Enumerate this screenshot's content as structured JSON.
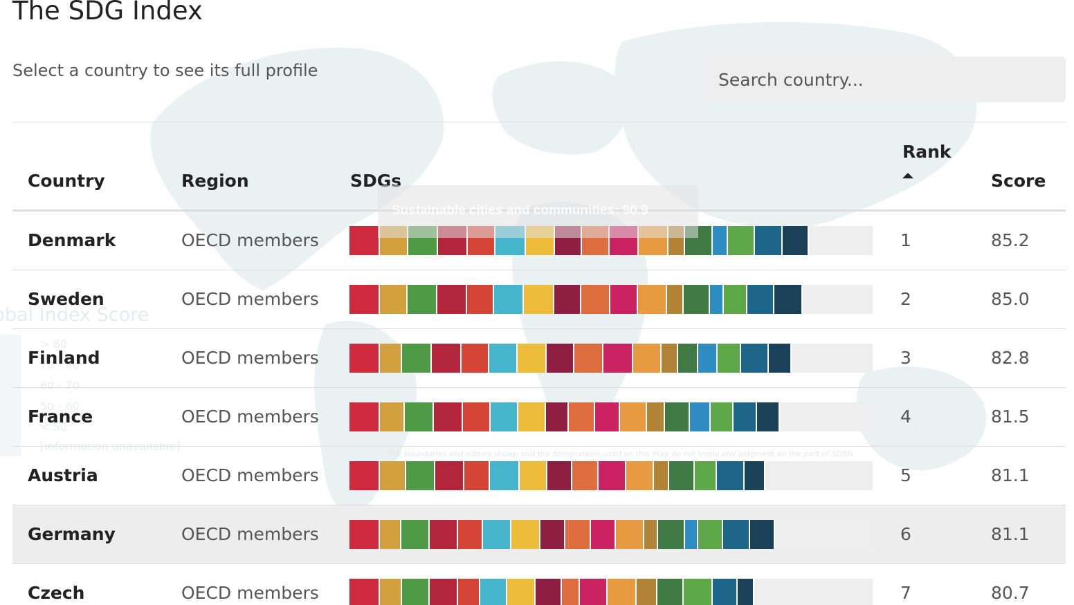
{
  "header": {
    "title": "The SDG Index",
    "subtitle": "Select a country to see its full profile"
  },
  "search": {
    "placeholder": "Search country..."
  },
  "table": {
    "columns": {
      "country": "Country",
      "region": "Region",
      "sdgs": "SDGs",
      "rank": "Rank",
      "score": "Score"
    },
    "sort": {
      "column": "rank",
      "direction": "ascending"
    },
    "hovered_row": "Germany",
    "rows": [
      {
        "country": "Denmark",
        "region": "OECD members",
        "rank": "1",
        "score": "85.2",
        "sdg_values": [
          99.5,
          93.0,
          97.0,
          96.0,
          91.0,
          98.0,
          95.0,
          87.0,
          89.0,
          95.0,
          97.0,
          53.0,
          90.0,
          49.0,
          87.0,
          91.0,
          86.0
        ]
      },
      {
        "country": "Sweden",
        "region": "OECD members",
        "rank": "2",
        "score": "85.0",
        "sdg_values": [
          99.4,
          89.0,
          96.0,
          96.0,
          88.0,
          96.0,
          98.0,
          87.0,
          94.0,
          91.0,
          95.0,
          55.0,
          85.0,
          45.0,
          76.0,
          87.0,
          92.0
        ]
      },
      {
        "country": "Finland",
        "region": "OECD members",
        "rank": "3",
        "score": "82.8",
        "sdg_values": [
          99.5,
          72.0,
          96.0,
          96.0,
          91.0,
          93.0,
          95.0,
          89.0,
          94.0,
          97.0,
          92.0,
          53.0,
          66.0,
          62.0,
          77.0,
          90.0,
          75.0
        ]
      },
      {
        "country": "France",
        "region": "OECD members",
        "rank": "4",
        "score": "81.5",
        "sdg_values": [
          99.5,
          80.0,
          94.0,
          95.0,
          91.0,
          90.0,
          91.0,
          74.0,
          86.0,
          81.0,
          88.0,
          58.0,
          81.0,
          67.0,
          74.0,
          77.0,
          74.0
        ]
      },
      {
        "country": "Austria",
        "region": "OECD members",
        "rank": "5",
        "score": "81.1",
        "sdg_values": [
          99.6,
          85.0,
          94.0,
          94.0,
          84.0,
          96.0,
          91.0,
          82.0,
          86.0,
          91.0,
          90.0,
          50.0,
          84.0,
          0.0,
          72.0,
          91.0,
          67.0
        ]
      },
      {
        "country": "Germany",
        "region": "OECD members",
        "rank": "6",
        "score": "81.1",
        "sdg_values": [
          99.5,
          69.0,
          92.0,
          93.0,
          80.0,
          93.0,
          94.0,
          81.0,
          84.0,
          82.0,
          92.0,
          44.0,
          87.0,
          43.0,
          82.0,
          87.0,
          81.0
        ]
      },
      {
        "country": "Czech",
        "region": "OECD members",
        "rank": "7",
        "score": "80.7",
        "sdg_values": [
          99.5,
          71.0,
          91.0,
          92.0,
          73.0,
          87.0,
          93.0,
          86.0,
          59.0,
          89.0,
          95.0,
          67.0,
          85.0,
          0.0,
          95.0,
          81.0,
          54.0
        ]
      }
    ]
  },
  "sdg_colors": [
    "#cf2a3d",
    "#d3a03f",
    "#4f9a46",
    "#b3253a",
    "#d54535",
    "#46b5cc",
    "#edbc3a",
    "#8f1f42",
    "#dd6c3e",
    "#cb2361",
    "#e79a42",
    "#b08337",
    "#3f7944",
    "#2f8dc3",
    "#5da748",
    "#1e6689",
    "#1a4158"
  ],
  "overlay": {
    "tooltip": "Sustainable cities and communities: 90.9",
    "legend_title": "Global Index Score",
    "legend_items": [
      "> 80",
      "70 - 80",
      "60 - 70",
      "50 - 60",
      "< 50",
      "[information unavailable]"
    ],
    "disclaimer": "The boundaries and names shown and the designations used on this map do not imply any judgment on the part of SDSN"
  }
}
